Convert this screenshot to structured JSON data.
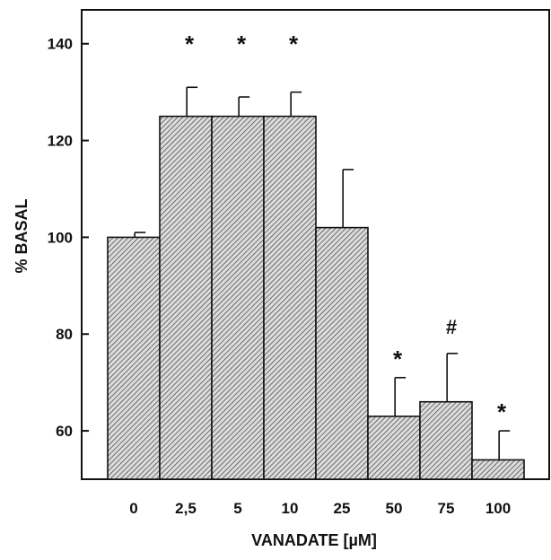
{
  "chart_data": {
    "type": "bar",
    "categories": [
      "0",
      "2,5",
      "5",
      "10",
      "25",
      "50",
      "75",
      "100"
    ],
    "values": [
      100,
      125,
      125,
      125,
      102,
      63,
      66,
      54
    ],
    "error_up": [
      1,
      6,
      4,
      5,
      12,
      8,
      10,
      6
    ],
    "markers": [
      "",
      "*",
      "*",
      "*",
      "",
      "*",
      "#",
      "*"
    ],
    "xlabel": "VANADATE [µM]",
    "ylabel": "% BASAL",
    "ylim": [
      50,
      147
    ],
    "yticks": [
      60,
      80,
      100,
      120,
      140
    ],
    "ytick_labels": [
      "60",
      "80",
      "100",
      "120",
      "140"
    ],
    "grid": false,
    "bar_fill": "hatched"
  },
  "colors": {
    "ink": "#111111",
    "bar_fill": "#d9d9d9",
    "hatch": "#333333",
    "background": "#ffffff"
  }
}
